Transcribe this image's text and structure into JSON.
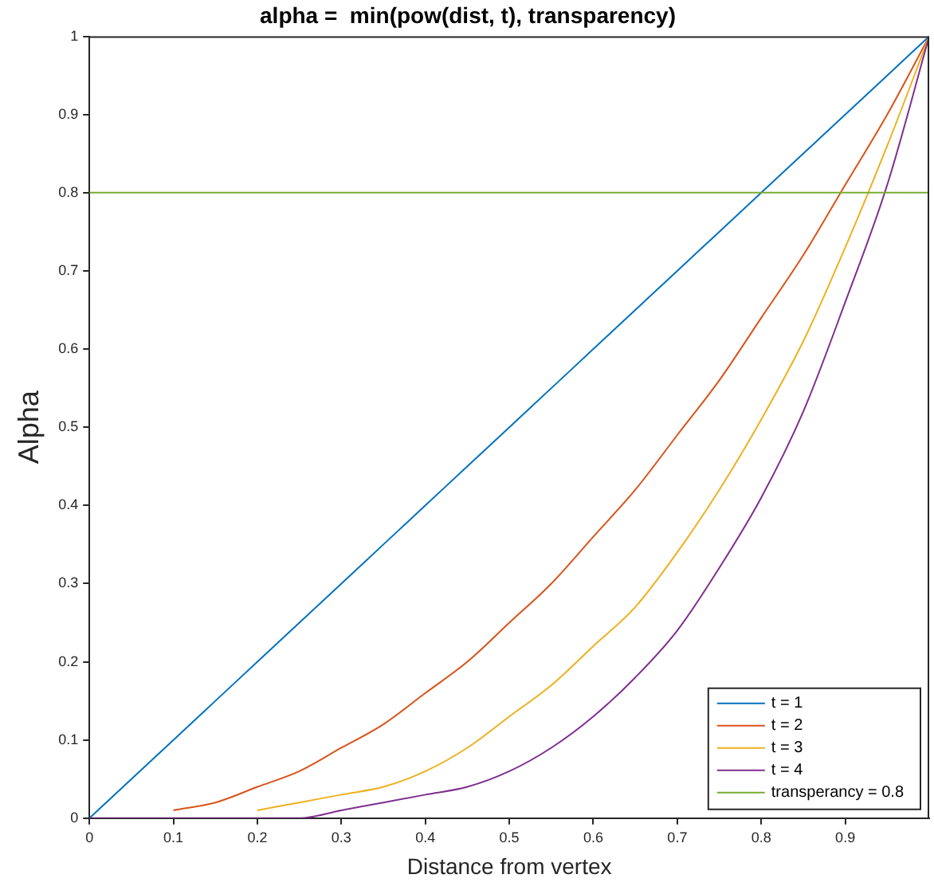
{
  "chart_data": {
    "type": "line",
    "title": "alpha =  min(pow(dist, t), transparency)",
    "xlabel": "Distance from vertex",
    "ylabel": "Alpha",
    "x": [
      0,
      0.05,
      0.1,
      0.15,
      0.2,
      0.25,
      0.3,
      0.35,
      0.4,
      0.45,
      0.5,
      0.55,
      0.6,
      0.65,
      0.7,
      0.75,
      0.8,
      0.85,
      0.9,
      0.95,
      1
    ],
    "series": [
      {
        "name": "t = 1",
        "color": "#0072bd",
        "values": [
          0,
          0.05,
          0.1,
          0.15,
          0.2,
          0.25,
          0.3,
          0.35,
          0.4,
          0.45,
          0.5,
          0.55,
          0.6,
          0.65,
          0.7,
          0.75,
          0.8,
          0.85,
          0.9,
          0.95,
          1
        ]
      },
      {
        "name": "t = 2",
        "color": "#d95319",
        "values": [
          null,
          null,
          0.01,
          0.02,
          0.04,
          0.06,
          0.09,
          0.12,
          0.16,
          0.2,
          0.25,
          0.3,
          0.36,
          0.42,
          0.49,
          0.56,
          0.64,
          0.72,
          0.81,
          0.9,
          1
        ]
      },
      {
        "name": "t = 3",
        "color": "#edb120",
        "values": [
          null,
          null,
          null,
          null,
          0.01,
          0.02,
          0.03,
          0.04,
          0.06,
          0.09,
          0.13,
          0.17,
          0.22,
          0.27,
          0.34,
          0.42,
          0.51,
          0.61,
          0.73,
          0.86,
          1
        ]
      },
      {
        "name": "t = 4",
        "color": "#7e2f8e",
        "values": [
          0,
          0,
          0,
          0,
          0,
          0,
          0.01,
          0.02,
          0.03,
          0.04,
          0.06,
          0.09,
          0.13,
          0.18,
          0.24,
          0.32,
          0.41,
          0.52,
          0.66,
          0.81,
          1
        ]
      },
      {
        "name": "transperancy = 0.8",
        "color": "#77ac30",
        "x": [
          0,
          1
        ],
        "values": [
          0.8,
          0.8
        ]
      }
    ],
    "xlim": [
      0,
      1
    ],
    "xticks": [
      0,
      0.1,
      0.2,
      0.3,
      0.4,
      0.5,
      0.6,
      0.7,
      0.8,
      0.9
    ],
    "ylim": [
      0,
      1
    ],
    "yticks": [
      0,
      0.1,
      0.2,
      0.3,
      0.4,
      0.5,
      0.6,
      0.7,
      0.8,
      0.9,
      1
    ],
    "grid": false,
    "legend": "bottom right",
    "marker": "none",
    "line_style": "solid"
  }
}
